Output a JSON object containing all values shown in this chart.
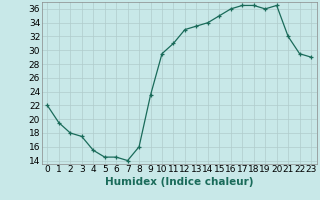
{
  "title": "",
  "xlabel": "Humidex (Indice chaleur)",
  "ylabel": "",
  "x": [
    0,
    1,
    2,
    3,
    4,
    5,
    6,
    7,
    8,
    9,
    10,
    11,
    12,
    13,
    14,
    15,
    16,
    17,
    18,
    19,
    20,
    21,
    22,
    23
  ],
  "y": [
    22,
    19.5,
    18,
    17.5,
    15.5,
    14.5,
    14.5,
    14,
    16,
    23.5,
    29.5,
    31,
    33,
    33.5,
    34,
    35,
    36,
    36.5,
    36.5,
    36,
    36.5,
    32,
    29.5,
    29
  ],
  "line_color": "#1a6b5a",
  "marker": "+",
  "marker_color": "#1a6b5a",
  "bg_color": "#c8e8e8",
  "grid_color": "#b0cccc",
  "ylim": [
    13.5,
    37.0
  ],
  "yticks": [
    14,
    16,
    18,
    20,
    22,
    24,
    26,
    28,
    30,
    32,
    34,
    36
  ],
  "xticks": [
    0,
    1,
    2,
    3,
    4,
    5,
    6,
    7,
    8,
    9,
    10,
    11,
    12,
    13,
    14,
    15,
    16,
    17,
    18,
    19,
    20,
    21,
    22,
    23
  ],
  "xlabel_fontsize": 7.5,
  "tick_fontsize": 6.5
}
